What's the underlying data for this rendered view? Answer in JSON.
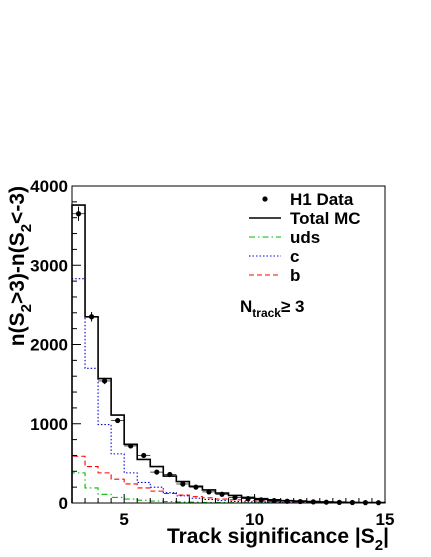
{
  "chart_data": {
    "type": "bar",
    "subtype": "step-histogram",
    "title": "",
    "xlabel": {
      "main": "Track significance |S",
      "sub": "2",
      "end": "|"
    },
    "ylabel": {
      "p1": "n(S",
      "s1": "2",
      "p2": ">3)-n(S",
      "s2": "2",
      "p3": "<-3)"
    },
    "xlim": [
      3,
      15
    ],
    "ylim": [
      0,
      4000
    ],
    "xticks": [
      5,
      10,
      15
    ],
    "yticks": [
      0,
      1000,
      2000,
      3000,
      4000
    ],
    "bin_edges": [
      3,
      3.5,
      4,
      4.5,
      5,
      5.5,
      6,
      6.5,
      7,
      7.5,
      8,
      8.5,
      9,
      9.5,
      10,
      10.5,
      11,
      11.5,
      12,
      12.5,
      13,
      13.5,
      14,
      14.5,
      15
    ],
    "series": [
      {
        "name": "H1 Data",
        "style": "points",
        "color": "#000000",
        "x": [
          3.25,
          3.75,
          4.25,
          4.75,
          5.25,
          5.75,
          6.25,
          6.75,
          7.25,
          7.75,
          8.25,
          8.75,
          9.25,
          9.75,
          10.25,
          10.75,
          11.25,
          11.75,
          12.25,
          12.75,
          13.25,
          13.75,
          14.25,
          14.75
        ],
        "values": [
          3650,
          2350,
          1540,
          1040,
          720,
          600,
          390,
          360,
          240,
          200,
          140,
          110,
          70,
          55,
          40,
          30,
          22,
          18,
          14,
          10,
          8,
          6,
          5,
          4
        ],
        "errors": [
          90,
          60,
          40,
          30,
          25,
          22,
          18,
          16,
          14,
          12,
          10,
          9,
          8,
          7,
          6,
          5,
          5,
          4,
          4,
          4,
          3,
          3,
          3,
          3
        ]
      },
      {
        "name": "Total MC",
        "style": "solid",
        "color": "#000000",
        "values": [
          3760,
          2350,
          1570,
          1110,
          740,
          550,
          460,
          340,
          270,
          210,
          165,
          125,
          95,
          70,
          55,
          40,
          30,
          24,
          18,
          14,
          11,
          8,
          6,
          5
        ]
      },
      {
        "name": "uds",
        "style": "dashdot",
        "color": "#00bb00",
        "values": [
          380,
          190,
          110,
          70,
          50,
          35,
          25,
          18,
          13,
          10,
          7,
          5,
          4,
          3,
          2,
          2,
          1,
          1,
          1,
          1,
          0,
          0,
          0,
          0
        ]
      },
      {
        "name": "c",
        "style": "dotted",
        "color": "#0000dd",
        "values": [
          2830,
          1700,
          990,
          620,
          380,
          260,
          200,
          130,
          90,
          60,
          45,
          30,
          20,
          15,
          10,
          7,
          5,
          4,
          3,
          2,
          2,
          1,
          1,
          1
        ]
      },
      {
        "name": "b",
        "style": "dashed",
        "color": "#ff0000",
        "values": [
          590,
          460,
          380,
          300,
          240,
          190,
          150,
          120,
          100,
          80,
          65,
          50,
          40,
          30,
          25,
          20,
          15,
          12,
          10,
          8,
          6,
          5,
          4,
          3
        ]
      }
    ],
    "legend": {
      "position": "top-right",
      "annotation": {
        "main": "N",
        "sub": "track",
        "rest": "≥ 3"
      }
    }
  }
}
